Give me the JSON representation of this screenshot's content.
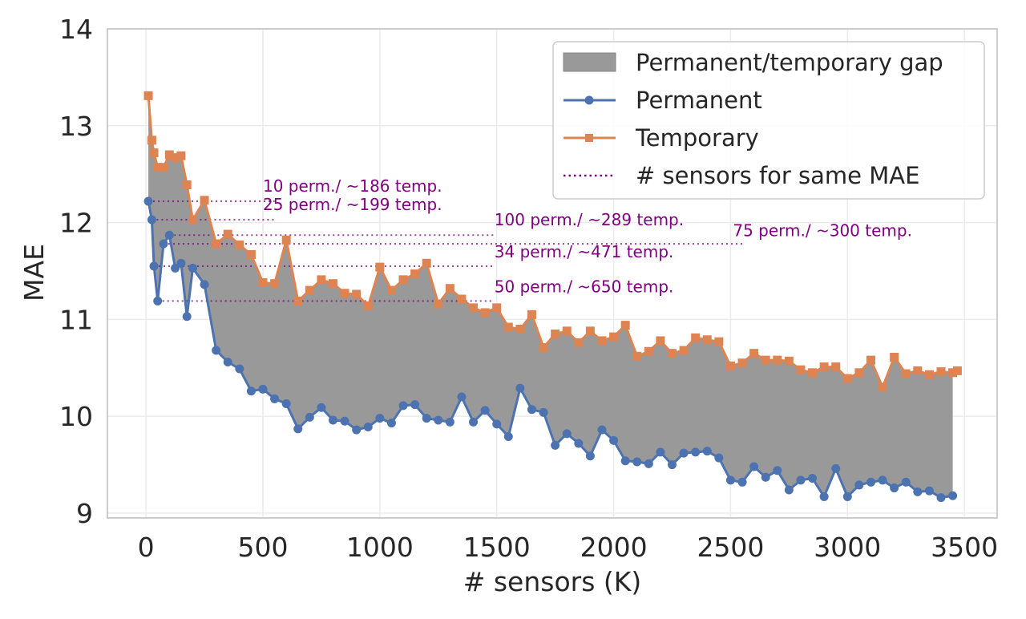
{
  "chart_data": {
    "type": "line",
    "title": "",
    "xlabel": "# sensors (K)",
    "ylabel": "MAE",
    "xlim": [
      -165,
      3640
    ],
    "ylim": [
      8.95,
      14.0
    ],
    "xticks": [
      0,
      500,
      1000,
      1500,
      2000,
      2500,
      3000,
      3500
    ],
    "yticks": [
      9,
      10,
      11,
      12,
      13,
      14
    ],
    "grid": true,
    "legend_position": "top-right",
    "legend": {
      "gap": "Permanent/temporary gap",
      "permanent": "Permanent",
      "temporary": "Temporary",
      "equiv": "# sensors for same MAE"
    },
    "colors": {
      "permanent": "#4c72b0",
      "temporary": "#dd8452",
      "gap": "#999999",
      "equiv": "#800080",
      "grid": "#ebebeb",
      "spine": "#cccccc"
    },
    "series": [
      {
        "name": "Permanent",
        "x": [
          10,
          25,
          34,
          50,
          75,
          100,
          125,
          150,
          175,
          200,
          250,
          300,
          350,
          400,
          450,
          500,
          550,
          600,
          650,
          700,
          750,
          800,
          850,
          900,
          950,
          1000,
          1050,
          1100,
          1150,
          1200,
          1250,
          1300,
          1350,
          1400,
          1450,
          1500,
          1550,
          1600,
          1650,
          1700,
          1750,
          1800,
          1850,
          1900,
          1950,
          2000,
          2050,
          2100,
          2150,
          2200,
          2250,
          2300,
          2350,
          2400,
          2450,
          2500,
          2550,
          2600,
          2650,
          2700,
          2750,
          2800,
          2850,
          2900,
          2950,
          3000,
          3050,
          3100,
          3150,
          3200,
          3250,
          3300,
          3350,
          3400,
          3450
        ],
        "values": [
          12.22,
          12.03,
          11.55,
          11.19,
          11.78,
          11.87,
          11.53,
          11.58,
          11.03,
          11.53,
          11.36,
          10.68,
          10.56,
          10.49,
          10.26,
          10.28,
          10.18,
          10.13,
          9.87,
          9.99,
          10.09,
          9.96,
          9.95,
          9.86,
          9.89,
          9.98,
          9.93,
          10.11,
          10.12,
          9.98,
          9.96,
          9.94,
          10.2,
          9.94,
          10.06,
          9.92,
          9.79,
          10.29,
          10.07,
          10.04,
          9.7,
          9.82,
          9.72,
          9.59,
          9.86,
          9.75,
          9.54,
          9.53,
          9.51,
          9.63,
          9.5,
          9.62,
          9.63,
          9.64,
          9.57,
          9.34,
          9.32,
          9.48,
          9.37,
          9.44,
          9.24,
          9.34,
          9.36,
          9.17,
          9.46,
          9.17,
          9.29,
          9.32,
          9.34,
          9.26,
          9.32,
          9.22,
          9.23,
          9.16,
          9.18
        ]
      },
      {
        "name": "Temporary",
        "x": [
          10,
          25,
          34,
          50,
          75,
          100,
          125,
          150,
          175,
          200,
          250,
          300,
          350,
          400,
          450,
          500,
          550,
          600,
          650,
          700,
          750,
          800,
          850,
          900,
          950,
          1000,
          1050,
          1100,
          1150,
          1200,
          1250,
          1300,
          1350,
          1400,
          1450,
          1500,
          1550,
          1600,
          1650,
          1700,
          1750,
          1800,
          1850,
          1900,
          1950,
          2000,
          2050,
          2100,
          2150,
          2200,
          2250,
          2300,
          2350,
          2400,
          2450,
          2500,
          2550,
          2600,
          2650,
          2700,
          2750,
          2800,
          2850,
          2900,
          2950,
          3000,
          3050,
          3100,
          3150,
          3200,
          3250,
          3300,
          3350,
          3400,
          3450,
          3470
        ],
        "values": [
          13.31,
          12.85,
          12.72,
          12.57,
          12.57,
          12.7,
          12.67,
          12.69,
          12.39,
          12.03,
          12.23,
          11.78,
          11.88,
          11.77,
          11.67,
          11.38,
          11.37,
          11.82,
          11.19,
          11.3,
          11.41,
          11.37,
          11.27,
          11.26,
          11.14,
          11.54,
          11.3,
          11.41,
          11.47,
          11.58,
          11.16,
          11.32,
          11.21,
          11.12,
          11.07,
          11.12,
          10.92,
          10.9,
          11.05,
          10.71,
          10.85,
          10.88,
          10.76,
          10.88,
          10.78,
          10.82,
          10.94,
          10.62,
          10.67,
          10.78,
          10.65,
          10.68,
          10.81,
          10.79,
          10.77,
          10.52,
          10.55,
          10.65,
          10.58,
          10.58,
          10.57,
          10.48,
          10.45,
          10.51,
          10.51,
          10.39,
          10.45,
          10.58,
          10.3,
          10.61,
          10.44,
          10.47,
          10.43,
          10.46,
          10.45,
          10.47
        ]
      }
    ],
    "equivalences": [
      {
        "perm": 10,
        "temp": 186,
        "mae": 12.22,
        "label": "10 perm./ ~186 temp.",
        "text_x": 500,
        "text_y": 12.32
      },
      {
        "perm": 25,
        "temp": 199,
        "mae": 12.03,
        "label": "25 perm./ ~199 temp.",
        "text_x": 500,
        "text_y": 12.13
      },
      {
        "perm": 100,
        "temp": 289,
        "mae": 11.87,
        "label": "100 perm./ ~289 temp.",
        "text_x": 1490,
        "text_y": 11.97
      },
      {
        "perm": 75,
        "temp": 300,
        "mae": 11.78,
        "label": "75 perm./ ~300 temp.",
        "text_x": 2510,
        "text_y": 11.86
      },
      {
        "perm": 34,
        "temp": 471,
        "mae": 11.55,
        "label": "34 perm./ ~471 temp.",
        "text_x": 1490,
        "text_y": 11.64
      },
      {
        "perm": 50,
        "temp": 650,
        "mae": 11.19,
        "label": "50 perm./ ~650 temp.",
        "text_x": 1490,
        "text_y": 11.28
      }
    ],
    "equivalence_line_end": {
      "10": 550,
      "25": 550,
      "100": 1490,
      "75": 2560,
      "34": 1490,
      "50": 1490
    }
  }
}
